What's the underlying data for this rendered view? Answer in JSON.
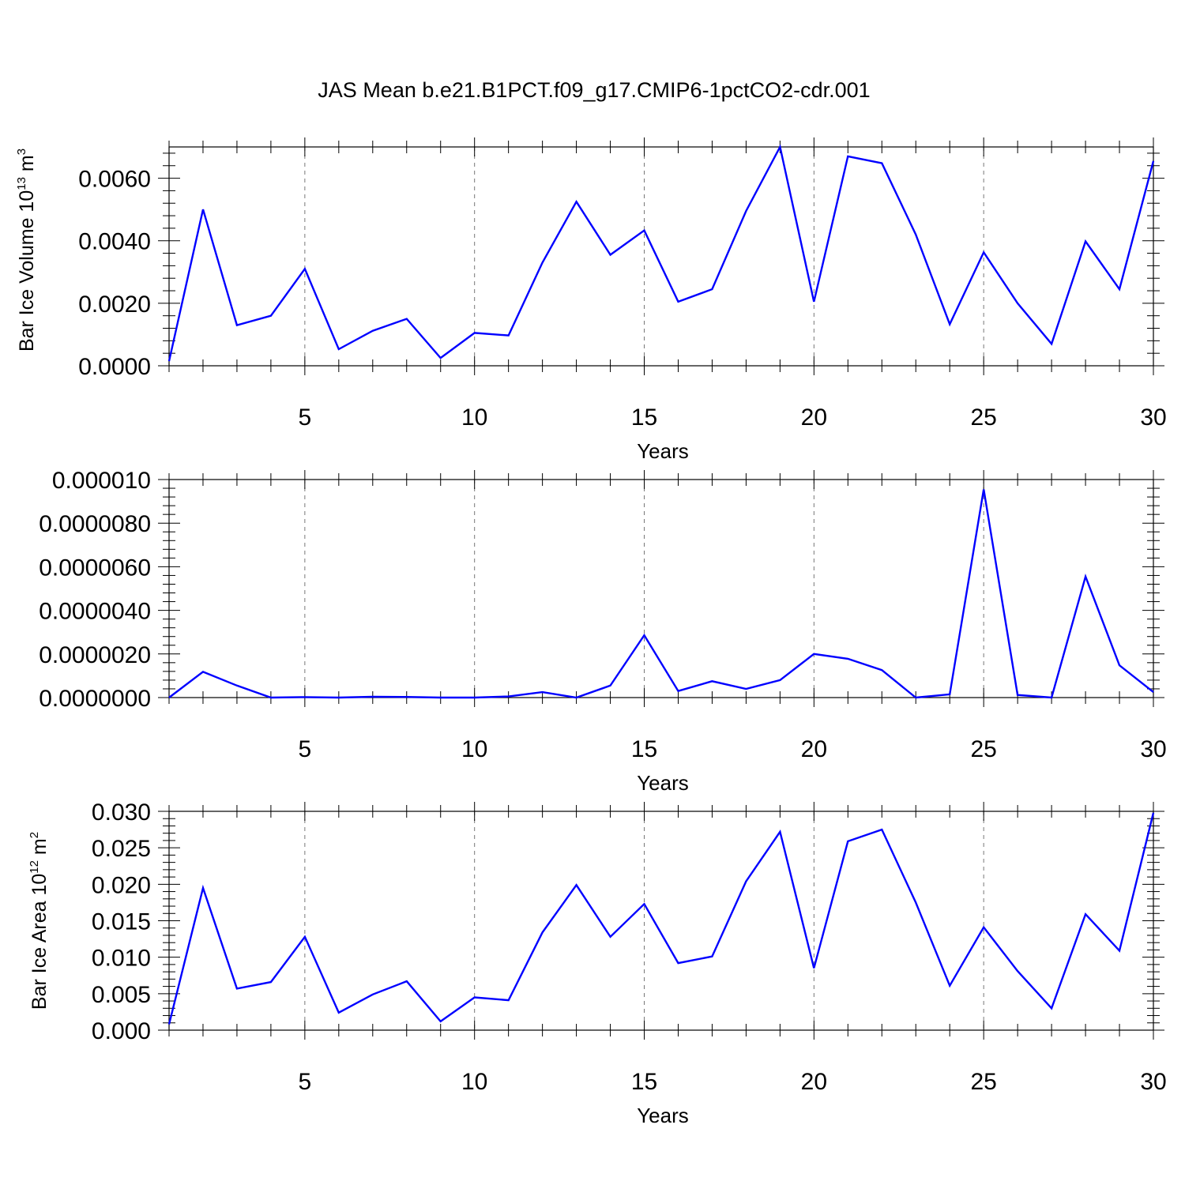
{
  "chart_data": {
    "title": "JAS Mean b.e21.B1PCT.f09_g17.CMIP6-1pctCO2-cdr.001",
    "panels": [
      {
        "type": "line",
        "xlabel": "Years",
        "ylabel": {
          "base": "Bar Ice Volume 10",
          "exp": "13",
          "unit": " m",
          "unit_exp": "3"
        },
        "x": [
          1,
          2,
          3,
          4,
          5,
          6,
          7,
          8,
          9,
          10,
          11,
          12,
          13,
          14,
          15,
          16,
          17,
          18,
          19,
          20,
          21,
          22,
          23,
          24,
          25,
          26,
          27,
          28,
          29,
          30
        ],
        "values": [
          0.00015,
          0.005,
          0.0013,
          0.0016,
          0.0031,
          0.00053,
          0.00112,
          0.0015,
          0.00025,
          0.00105,
          0.00097,
          0.0033,
          0.00525,
          0.00355,
          0.00433,
          0.00205,
          0.00245,
          0.00495,
          0.007,
          0.00205,
          0.0067,
          0.00648,
          0.0042,
          0.00133,
          0.00363,
          0.002,
          0.0007,
          0.00398,
          0.00245,
          0.00655
        ],
        "xlim": [
          1,
          30
        ],
        "ylim": [
          0,
          0.007
        ],
        "xticks": [
          5,
          10,
          15,
          20,
          25,
          30
        ],
        "xtick_labels": [
          "5",
          "10",
          "15",
          "20",
          "25",
          "30"
        ],
        "yticks": [
          0,
          0.002,
          0.004,
          0.006
        ],
        "ytick_labels": [
          "0.0000",
          "0.0020",
          "0.0040",
          "0.0060"
        ],
        "grid": "vertical dashed at major x ticks",
        "series_color": "#0000ff"
      },
      {
        "type": "line",
        "xlabel": "Years",
        "ylabel": null,
        "x": [
          1,
          2,
          3,
          4,
          5,
          6,
          7,
          8,
          9,
          10,
          11,
          12,
          13,
          14,
          15,
          16,
          17,
          18,
          19,
          20,
          21,
          22,
          23,
          24,
          25,
          26,
          27,
          28,
          29,
          30
        ],
        "values": [
          0.0,
          1.18e-06,
          5.5e-07,
          0.0,
          2e-08,
          0.0,
          4e-08,
          3e-08,
          0.0,
          0.0,
          5e-08,
          2.5e-07,
          0.0,
          5.5e-07,
          2.86e-06,
          3e-07,
          7.5e-07,
          4e-07,
          8e-07,
          2e-06,
          1.78e-06,
          1.26e-06,
          0.0,
          1.5e-07,
          9.55e-06,
          1.2e-07,
          0.0,
          5.55e-06,
          1.48e-06,
          2.5e-07
        ],
        "xlim": [
          1,
          30
        ],
        "ylim": [
          0,
          1e-05
        ],
        "xticks": [
          5,
          10,
          15,
          20,
          25,
          30
        ],
        "xtick_labels": [
          "5",
          "10",
          "15",
          "20",
          "25",
          "30"
        ],
        "yticks": [
          0,
          2e-06,
          4e-06,
          6e-06,
          8e-06,
          1e-05
        ],
        "ytick_labels": [
          "0.0000000",
          "0.0000020",
          "0.0000040",
          "0.0000060",
          "0.0000080",
          "0.000010"
        ],
        "grid": "vertical dashed at major x ticks",
        "series_color": "#0000ff"
      },
      {
        "type": "line",
        "xlabel": "Years",
        "ylabel": {
          "base": "Bar Ice Area 10",
          "exp": "12",
          "unit": " m",
          "unit_exp": "2"
        },
        "x": [
          1,
          2,
          3,
          4,
          5,
          6,
          7,
          8,
          9,
          10,
          11,
          12,
          13,
          14,
          15,
          16,
          17,
          18,
          19,
          20,
          21,
          22,
          23,
          24,
          25,
          26,
          27,
          28,
          29,
          30
        ],
        "values": [
          0.0008,
          0.0195,
          0.0057,
          0.0066,
          0.0128,
          0.0024,
          0.0049,
          0.0067,
          0.0012,
          0.0045,
          0.0041,
          0.0134,
          0.0199,
          0.0128,
          0.0173,
          0.0092,
          0.0101,
          0.0204,
          0.0272,
          0.0085,
          0.0259,
          0.0275,
          0.0175,
          0.0061,
          0.0141,
          0.0081,
          0.003,
          0.0159,
          0.0109,
          0.0298
        ],
        "xlim": [
          1,
          30
        ],
        "ylim": [
          0,
          0.03
        ],
        "xticks": [
          5,
          10,
          15,
          20,
          25,
          30
        ],
        "xtick_labels": [
          "5",
          "10",
          "15",
          "20",
          "25",
          "30"
        ],
        "yticks": [
          0,
          0.005,
          0.01,
          0.015,
          0.02,
          0.025,
          0.03
        ],
        "ytick_labels": [
          "0.000",
          "0.005",
          "0.010",
          "0.015",
          "0.020",
          "0.025",
          "0.030"
        ],
        "grid": "vertical dashed at major x ticks",
        "series_color": "#0000ff"
      }
    ]
  }
}
